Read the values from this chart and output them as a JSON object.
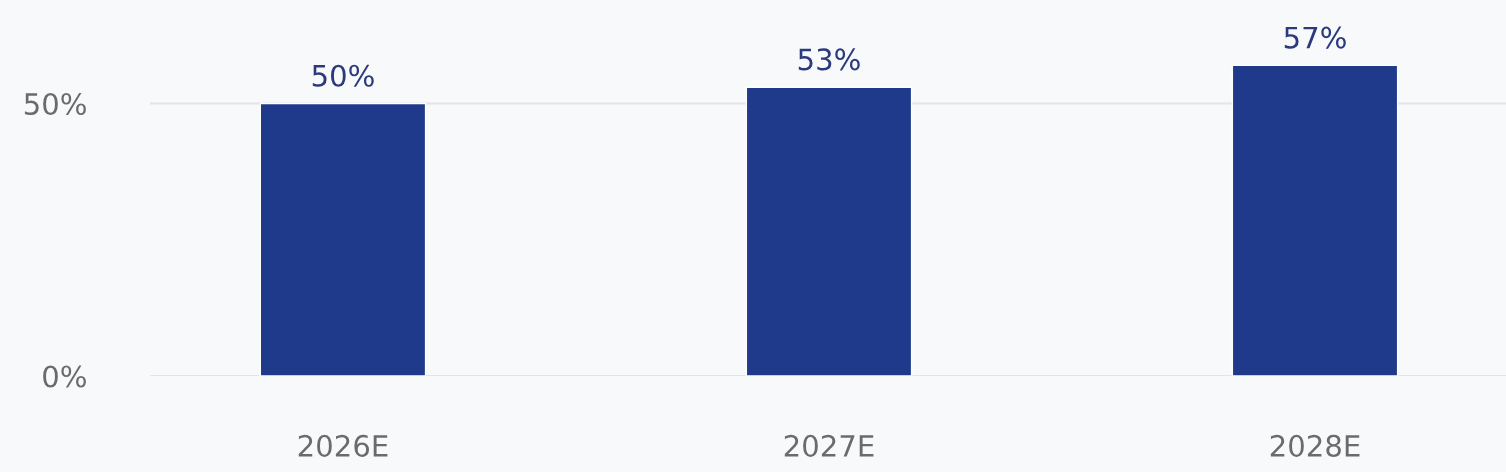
{
  "chart_data": {
    "type": "bar",
    "categories": [
      "2026E",
      "2027E",
      "2028E"
    ],
    "values": [
      50,
      53,
      57
    ],
    "color": "#1f3a8a",
    "value_labels": [
      "50%",
      "53%",
      "57%"
    ],
    "ylim": [
      0,
      69
    ],
    "yticks": [
      {
        "value": 0,
        "label": "0%"
      },
      {
        "value": 50,
        "label": "50%"
      }
    ],
    "grid": "y"
  }
}
